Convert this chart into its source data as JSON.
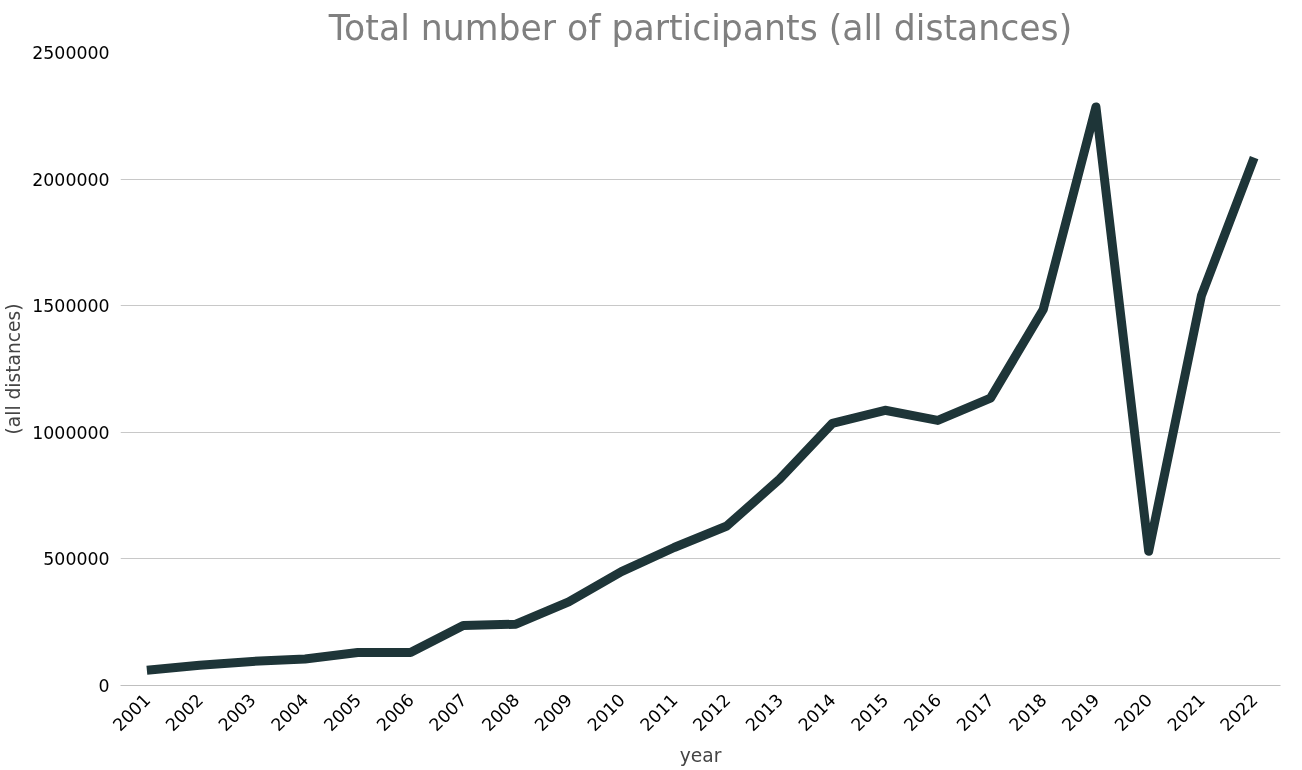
{
  "chart_data": {
    "type": "line",
    "title": "Total number of participants (all distances)",
    "xlabel": "year",
    "ylabel": "(all distances)",
    "categories": [
      "2001",
      "2002",
      "2003",
      "2004",
      "2005",
      "2006",
      "2007",
      "2008",
      "2009",
      "2010",
      "2011",
      "2012",
      "2013",
      "2014",
      "2015",
      "2016",
      "2017",
      "2018",
      "2019",
      "2020",
      "2021",
      "2022"
    ],
    "series": [
      {
        "color": "#1e3538",
        "values": [
          60000,
          80000,
          95000,
          105000,
          130000,
          130000,
          237000,
          242000,
          330000,
          450000,
          545000,
          630000,
          815000,
          1035000,
          1087000,
          1047000,
          1135000,
          1485000,
          2285000,
          530000,
          1540000,
          2085000
        ]
      }
    ],
    "ylim": [
      0,
      2500000
    ],
    "yticks": [
      0,
      500000,
      1000000,
      1500000,
      2000000,
      2500000
    ],
    "grid": "y",
    "marker": "none",
    "line_style": "solid"
  }
}
